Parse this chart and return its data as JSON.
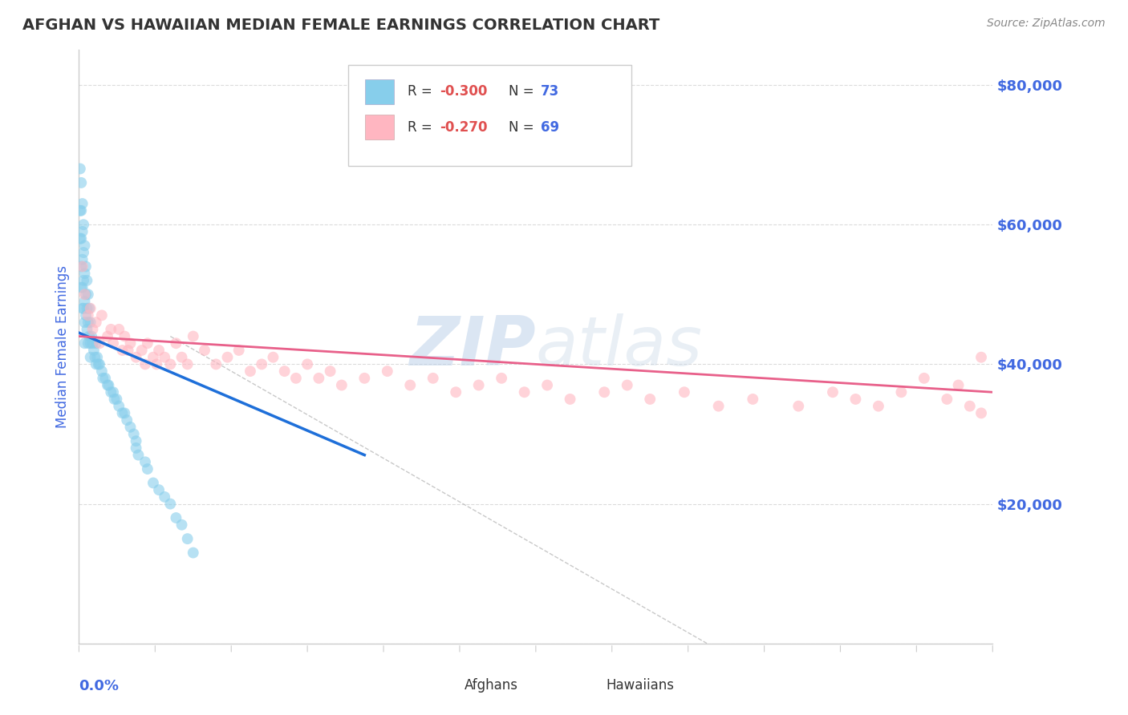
{
  "title": "AFGHAN VS HAWAIIAN MEDIAN FEMALE EARNINGS CORRELATION CHART",
  "source": "Source: ZipAtlas.com",
  "ylabel": "Median Female Earnings",
  "xlim": [
    0.0,
    0.8
  ],
  "ylim": [
    0,
    85000
  ],
  "yticks": [
    0,
    20000,
    40000,
    60000,
    80000
  ],
  "ytick_labels": [
    "",
    "$20,000",
    "$40,000",
    "$60,000",
    "$80,000"
  ],
  "afghan_color": "#87CEEB",
  "hawaiian_color": "#FFB6C1",
  "afghan_line_color": "#1E6FD9",
  "hawaiian_line_color": "#E8608A",
  "title_color": "#333333",
  "axis_label_color": "#4169E1",
  "tick_color": "#4169E1",
  "grid_color": "#CCCCCC",
  "legend_R_color": "#E05050",
  "legend_N_color": "#4169E1",
  "source_color": "#888888",
  "watermark_color": "#DDEEFF",
  "afghan_line_x0": 0.0,
  "afghan_line_y0": 44500,
  "afghan_line_x1": 0.25,
  "afghan_line_y1": 27000,
  "hawaiian_line_x0": 0.0,
  "hawaiian_line_y0": 44000,
  "hawaiian_line_x1": 0.8,
  "hawaiian_line_y1": 36000,
  "gray_line_x0": 0.08,
  "gray_line_y0": 44000,
  "gray_line_x1": 0.55,
  "gray_line_y1": 0,
  "afghan_scatter_x": [
    0.001,
    0.001,
    0.001,
    0.002,
    0.002,
    0.002,
    0.002,
    0.002,
    0.003,
    0.003,
    0.003,
    0.003,
    0.003,
    0.004,
    0.004,
    0.004,
    0.004,
    0.005,
    0.005,
    0.005,
    0.005,
    0.005,
    0.006,
    0.006,
    0.006,
    0.007,
    0.007,
    0.007,
    0.008,
    0.008,
    0.008,
    0.009,
    0.009,
    0.01,
    0.01,
    0.01,
    0.011,
    0.012,
    0.013,
    0.014,
    0.015,
    0.015,
    0.016,
    0.017,
    0.018,
    0.02,
    0.021,
    0.023,
    0.025,
    0.026,
    0.028,
    0.03,
    0.031,
    0.033,
    0.035,
    0.038,
    0.04,
    0.042,
    0.045,
    0.048,
    0.05,
    0.05,
    0.052,
    0.058,
    0.06,
    0.065,
    0.07,
    0.075,
    0.08,
    0.085,
    0.09,
    0.095,
    0.1
  ],
  "afghan_scatter_y": [
    68000,
    62000,
    58000,
    66000,
    62000,
    58000,
    54000,
    51000,
    63000,
    59000,
    55000,
    51000,
    48000,
    60000,
    56000,
    52000,
    48000,
    57000,
    53000,
    49000,
    46000,
    43000,
    54000,
    50000,
    47000,
    52000,
    48000,
    45000,
    50000,
    46000,
    43000,
    48000,
    44000,
    46000,
    43000,
    41000,
    44000,
    43000,
    42000,
    41000,
    43000,
    40000,
    41000,
    40000,
    40000,
    39000,
    38000,
    38000,
    37000,
    37000,
    36000,
    36000,
    35000,
    35000,
    34000,
    33000,
    33000,
    32000,
    31000,
    30000,
    29000,
    28000,
    27000,
    26000,
    25000,
    23000,
    22000,
    21000,
    20000,
    18000,
    17000,
    15000,
    13000
  ],
  "hawaiian_scatter_x": [
    0.003,
    0.005,
    0.008,
    0.01,
    0.012,
    0.015,
    0.018,
    0.02,
    0.025,
    0.028,
    0.03,
    0.035,
    0.038,
    0.04,
    0.043,
    0.045,
    0.05,
    0.055,
    0.058,
    0.06,
    0.065,
    0.068,
    0.07,
    0.075,
    0.08,
    0.085,
    0.09,
    0.095,
    0.1,
    0.11,
    0.12,
    0.13,
    0.14,
    0.15,
    0.16,
    0.17,
    0.18,
    0.19,
    0.2,
    0.21,
    0.22,
    0.23,
    0.25,
    0.27,
    0.29,
    0.31,
    0.33,
    0.35,
    0.37,
    0.39,
    0.41,
    0.43,
    0.46,
    0.48,
    0.5,
    0.53,
    0.56,
    0.59,
    0.63,
    0.66,
    0.68,
    0.7,
    0.72,
    0.74,
    0.76,
    0.77,
    0.78,
    0.79,
    0.79
  ],
  "hawaiian_scatter_y": [
    54000,
    50000,
    47000,
    48000,
    45000,
    46000,
    43000,
    47000,
    44000,
    45000,
    43000,
    45000,
    42000,
    44000,
    42000,
    43000,
    41000,
    42000,
    40000,
    43000,
    41000,
    40000,
    42000,
    41000,
    40000,
    43000,
    41000,
    40000,
    44000,
    42000,
    40000,
    41000,
    42000,
    39000,
    40000,
    41000,
    39000,
    38000,
    40000,
    38000,
    39000,
    37000,
    38000,
    39000,
    37000,
    38000,
    36000,
    37000,
    38000,
    36000,
    37000,
    35000,
    36000,
    37000,
    35000,
    36000,
    34000,
    35000,
    34000,
    36000,
    35000,
    34000,
    36000,
    38000,
    35000,
    37000,
    34000,
    33000,
    41000
  ]
}
